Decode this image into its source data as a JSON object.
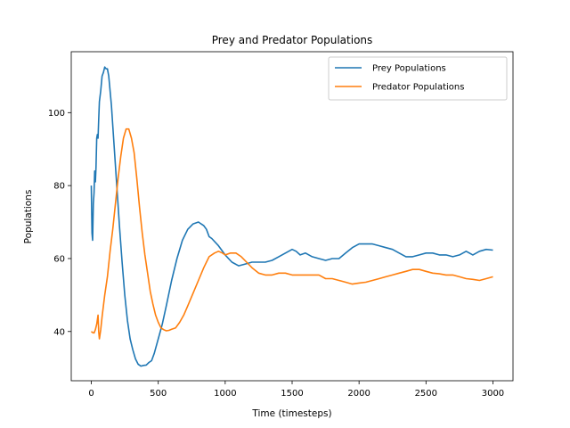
{
  "chart_data": {
    "type": "line",
    "title": "Prey and Predator Populations",
    "xlabel": "Time (timesteps)",
    "ylabel": "Populations",
    "xlim": [
      -150,
      3150
    ],
    "ylim": [
      26.5,
      116.7
    ],
    "xticks": [
      0,
      500,
      1000,
      1500,
      2000,
      2500,
      3000
    ],
    "xtick_labels": [
      "0",
      "500",
      "1000",
      "1500",
      "2000",
      "2500",
      "3000"
    ],
    "yticks": [
      40,
      60,
      80,
      100
    ],
    "ytick_labels": [
      "40",
      "60",
      "80",
      "100"
    ],
    "grid": false,
    "legend": {
      "position": "top-right"
    },
    "series": [
      {
        "name": "Prey Populations",
        "color": "#1f77b4",
        "x": [
          0,
          5,
          10,
          15,
          20,
          25,
          30,
          35,
          40,
          45,
          50,
          55,
          60,
          70,
          80,
          90,
          100,
          110,
          120,
          130,
          150,
          170,
          190,
          210,
          230,
          250,
          270,
          290,
          310,
          330,
          350,
          370,
          390,
          410,
          430,
          450,
          470,
          500,
          530,
          560,
          600,
          640,
          680,
          720,
          760,
          800,
          820,
          840,
          860,
          880,
          900,
          950,
          1000,
          1050,
          1100,
          1150,
          1200,
          1250,
          1300,
          1350,
          1400,
          1450,
          1500,
          1530,
          1560,
          1600,
          1650,
          1700,
          1750,
          1800,
          1850,
          1900,
          1950,
          2000,
          2050,
          2100,
          2150,
          2200,
          2250,
          2300,
          2350,
          2400,
          2450,
          2500,
          2550,
          2600,
          2650,
          2700,
          2750,
          2800,
          2850,
          2900,
          2950,
          3000
        ],
        "y": [
          80,
          67,
          65,
          75,
          78,
          84,
          81,
          85,
          93,
          94,
          93,
          98,
          103,
          106,
          110,
          111,
          112.5,
          112,
          112,
          110,
          102,
          91,
          80,
          69,
          59,
          50,
          43,
          38,
          35,
          32.5,
          31,
          30.5,
          30.7,
          30.8,
          31.5,
          32,
          34,
          38,
          42,
          47,
          54,
          60,
          65,
          68,
          69.5,
          70,
          69.5,
          69,
          68,
          66,
          65.5,
          63.5,
          61,
          59,
          58,
          58.5,
          59,
          59,
          59,
          59.5,
          60.5,
          61.5,
          62.5,
          62,
          61,
          61.5,
          60.5,
          60,
          59.5,
          60,
          60,
          61.5,
          63,
          64,
          64,
          64,
          63.5,
          63,
          62.5,
          61.5,
          60.5,
          60.5,
          61,
          61.5,
          61.5,
          61,
          61,
          60.5,
          61,
          62,
          61,
          62,
          62.5,
          62.3
        ]
      },
      {
        "name": "Predator Populations",
        "color": "#ff7f0e",
        "x": [
          0,
          10,
          20,
          30,
          40,
          50,
          55,
          60,
          70,
          80,
          90,
          100,
          120,
          140,
          160,
          180,
          200,
          220,
          240,
          260,
          280,
          300,
          320,
          340,
          360,
          380,
          400,
          420,
          440,
          460,
          480,
          500,
          520,
          540,
          560,
          580,
          600,
          630,
          660,
          690,
          720,
          760,
          800,
          840,
          880,
          920,
          950,
          980,
          1000,
          1040,
          1080,
          1120,
          1160,
          1200,
          1250,
          1300,
          1350,
          1400,
          1450,
          1500,
          1550,
          1600,
          1650,
          1700,
          1750,
          1800,
          1850,
          1900,
          1950,
          2000,
          2050,
          2100,
          2150,
          2200,
          2250,
          2300,
          2350,
          2400,
          2450,
          2500,
          2550,
          2600,
          2650,
          2700,
          2750,
          2800,
          2850,
          2900,
          2950,
          3000
        ],
        "y": [
          40,
          39.7,
          39.6,
          40.5,
          42,
          44.5,
          40,
          38,
          40.5,
          44,
          47,
          50,
          55,
          62,
          68,
          75,
          82,
          88,
          93,
          95.5,
          95.5,
          93,
          89,
          82,
          74,
          67,
          61,
          56,
          51,
          47.5,
          44.5,
          42.5,
          41,
          40.5,
          40.2,
          40.3,
          40.6,
          41,
          42.5,
          44.5,
          47,
          50.5,
          54,
          57.5,
          60.5,
          61.5,
          62,
          61.5,
          61,
          61.5,
          61.5,
          60.5,
          59,
          57.5,
          56,
          55.5,
          55.5,
          56,
          56,
          55.5,
          55.5,
          55.5,
          55.5,
          55.5,
          54.5,
          54.5,
          54,
          53.5,
          53,
          53.3,
          53.5,
          54,
          54.5,
          55,
          55.5,
          56,
          56.5,
          57,
          57,
          56.5,
          56,
          55.8,
          55.5,
          55.5,
          55,
          54.5,
          54.3,
          54,
          54.5,
          55
        ]
      }
    ]
  }
}
